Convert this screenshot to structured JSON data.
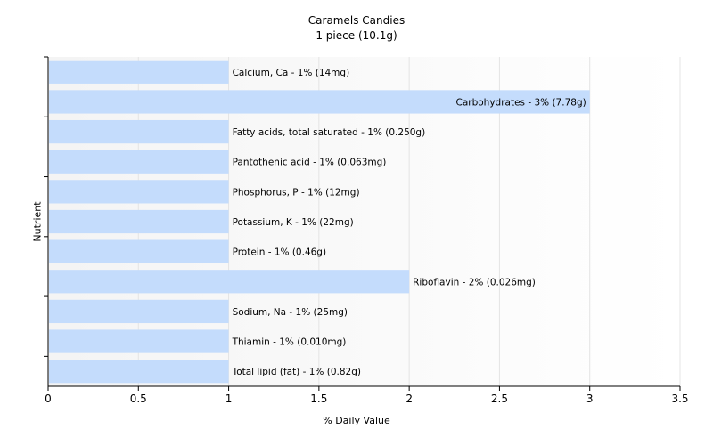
{
  "chart_data": {
    "type": "bar",
    "orientation": "horizontal",
    "title": "Caramels Candies",
    "subtitle": "1 piece (10.1g)",
    "xlabel": "% Daily Value",
    "ylabel": "Nutrient",
    "xlim": [
      0,
      3.5
    ],
    "xticks": [
      "0",
      "0.5",
      "1",
      "1.5",
      "2",
      "2.5",
      "3",
      "3.5"
    ],
    "grid": true,
    "bar_color": "#c4dcfc",
    "categories": [
      "Calcium, Ca",
      "Carbohydrates",
      "Fatty acids, total saturated",
      "Pantothenic acid",
      "Phosphorus, P",
      "Potassium, K",
      "Protein",
      "Riboflavin",
      "Sodium, Na",
      "Thiamin",
      "Total lipid (fat)"
    ],
    "values": [
      1,
      3,
      1,
      1,
      1,
      1,
      1,
      2,
      1,
      1,
      1
    ],
    "data_labels": [
      "Calcium, Ca - 1% (14mg)",
      "Carbohydrates - 3% (7.78g)",
      "Fatty acids, total saturated - 1% (0.250g)",
      "Pantothenic acid - 1% (0.063mg)",
      "Phosphorus, P - 1% (12mg)",
      "Potassium, K - 1% (22mg)",
      "Protein - 1% (0.46g)",
      "Riboflavin - 2% (0.026mg)",
      "Sodium, Na - 1% (25mg)",
      "Thiamin - 1% (0.010mg)",
      "Total lipid (fat) - 1% (0.82g)"
    ]
  }
}
